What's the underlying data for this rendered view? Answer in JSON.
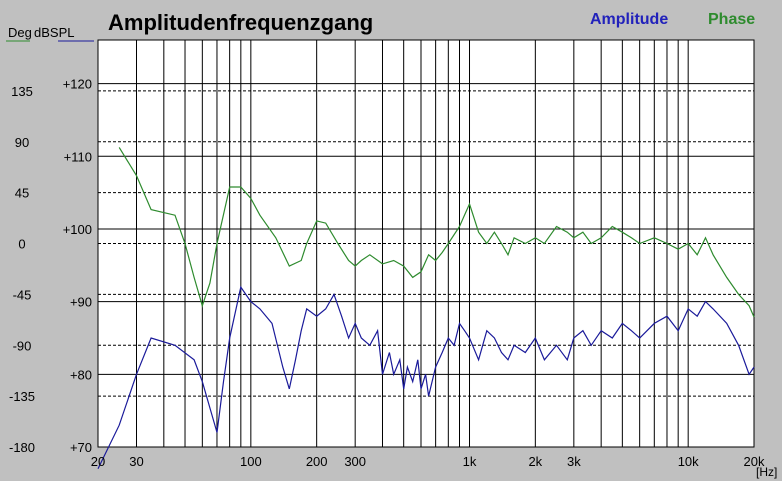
{
  "chart_data": {
    "type": "line",
    "title": "Amplitudenfrequenzgang",
    "left_axis_label": "Deg",
    "right_axis_label": "dBSPL",
    "x_unit": "[Hz]",
    "x_scale": "log",
    "xlim": [
      20,
      20000
    ],
    "x_ticks": [
      {
        "value": 20,
        "label": "20"
      },
      {
        "value": 30,
        "label": "30"
      },
      {
        "value": 100,
        "label": "100"
      },
      {
        "value": 200,
        "label": "200"
      },
      {
        "value": 300,
        "label": "300"
      },
      {
        "value": 1000,
        "label": "1k"
      },
      {
        "value": 2000,
        "label": "2k"
      },
      {
        "value": 3000,
        "label": "3k"
      },
      {
        "value": 10000,
        "label": "10k"
      },
      {
        "value": 20000,
        "label": "20k"
      }
    ],
    "phase_axis": {
      "range": [
        -180,
        180
      ],
      "tick_labels": [
        "135",
        "90",
        "45",
        "0",
        "-45",
        "-90",
        "-135",
        "-180"
      ],
      "tick_values": [
        135,
        90,
        45,
        0,
        -45,
        -90,
        -135,
        -180
      ]
    },
    "spl_axis": {
      "range": [
        70,
        126
      ],
      "tick_labels": [
        "+120",
        "+110",
        "+100",
        "+90",
        "+80",
        "+70"
      ],
      "tick_values": [
        120,
        110,
        100,
        90,
        80,
        70
      ]
    },
    "grid": true,
    "legend_position": "top-right",
    "colors": {
      "background": "#c0c0c0",
      "plot": "#ffffff",
      "amplitude": "#1a1a9a",
      "phase": "#2e8b2e",
      "legend_amplitude": "#2222bb",
      "legend_phase": "#2e8b2e"
    },
    "series": [
      {
        "name": "Amplitude",
        "axis": "dBSPL",
        "x": [
          20,
          25,
          30,
          35,
          45,
          55,
          60,
          70,
          75,
          80,
          90,
          100,
          110,
          125,
          140,
          150,
          160,
          170,
          180,
          200,
          220,
          240,
          260,
          280,
          300,
          320,
          350,
          380,
          400,
          430,
          450,
          480,
          500,
          520,
          550,
          580,
          600,
          630,
          650,
          700,
          750,
          800,
          850,
          900,
          950,
          1000,
          1100,
          1200,
          1300,
          1400,
          1500,
          1600,
          1800,
          2000,
          2200,
          2500,
          2800,
          3000,
          3300,
          3600,
          4000,
          4500,
          5000,
          5500,
          6000,
          7000,
          8000,
          9000,
          10000,
          11000,
          12000,
          13000,
          15000,
          17000,
          19000,
          20000
        ],
        "values": [
          67,
          73,
          80,
          85,
          84,
          82,
          79,
          72,
          79,
          85,
          92,
          90,
          89,
          87,
          81,
          78,
          82,
          86,
          89,
          88,
          89,
          91,
          88,
          85,
          87,
          85,
          84,
          86,
          80,
          83,
          80,
          82,
          78,
          81,
          79,
          82,
          78,
          80,
          77,
          81,
          83,
          85,
          84,
          87,
          86,
          85,
          82,
          86,
          85,
          83,
          82,
          84,
          83,
          85,
          82,
          84,
          82,
          85,
          86,
          84,
          86,
          85,
          87,
          86,
          85,
          87,
          88,
          86,
          89,
          88,
          90,
          89,
          87,
          84,
          80,
          81
        ]
      },
      {
        "name": "Phase",
        "axis": "Deg",
        "x": [
          25,
          30,
          35,
          45,
          50,
          55,
          60,
          65,
          70,
          80,
          90,
          100,
          110,
          130,
          150,
          170,
          180,
          200,
          220,
          250,
          280,
          300,
          320,
          350,
          400,
          450,
          500,
          550,
          600,
          650,
          700,
          750,
          800,
          900,
          1000,
          1100,
          1200,
          1300,
          1400,
          1500,
          1600,
          1800,
          2000,
          2200,
          2500,
          2800,
          3000,
          3300,
          3600,
          4000,
          4500,
          5000,
          5500,
          6000,
          7000,
          8000,
          9000,
          10000,
          11000,
          12000,
          13000,
          15000,
          17000,
          19000,
          20000
        ],
        "values": [
          85,
          60,
          30,
          25,
          0,
          -30,
          -55,
          -35,
          0,
          50,
          50,
          40,
          25,
          5,
          -20,
          -15,
          0,
          20,
          18,
          0,
          -15,
          -20,
          -15,
          -10,
          -18,
          -15,
          -20,
          -30,
          -25,
          -10,
          -15,
          -8,
          0,
          15,
          35,
          10,
          0,
          10,
          0,
          -10,
          5,
          0,
          5,
          0,
          15,
          10,
          5,
          10,
          0,
          5,
          15,
          10,
          5,
          0,
          5,
          0,
          -5,
          0,
          -10,
          5,
          -10,
          -30,
          -45,
          -55,
          -65
        ]
      }
    ]
  }
}
